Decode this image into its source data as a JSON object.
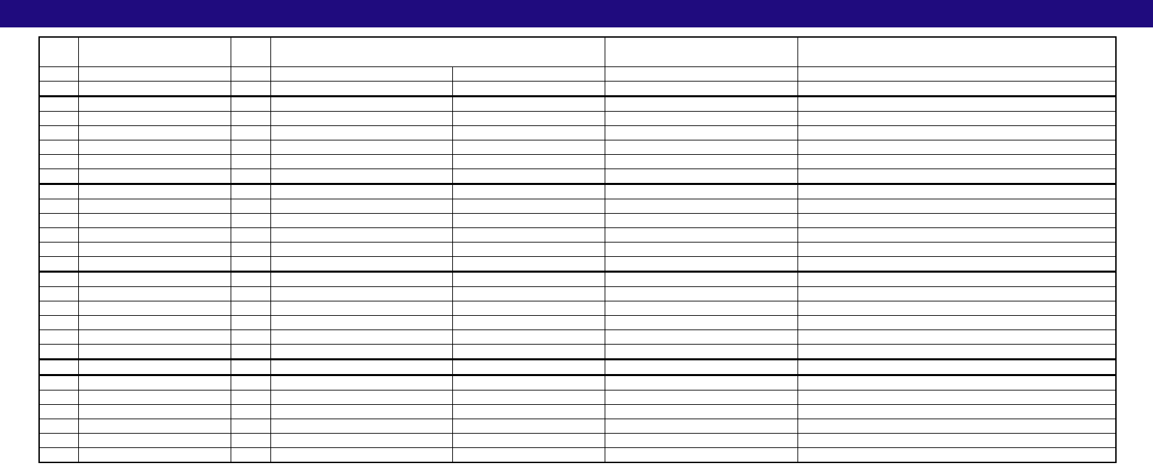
{
  "header_bar": {
    "color": "#1f0b7e"
  },
  "table": {
    "header": [
      "",
      "",
      "",
      "",
      "",
      ""
    ],
    "rows": [
      [
        "",
        "",
        "",
        "",
        "",
        "",
        ""
      ],
      [
        "",
        "",
        "",
        "",
        "",
        "",
        ""
      ],
      [
        "",
        "",
        "",
        "",
        "",
        "",
        ""
      ],
      [
        "",
        "",
        "",
        "",
        "",
        "",
        ""
      ],
      [
        "",
        "",
        "",
        "",
        "",
        "",
        ""
      ],
      [
        "",
        "",
        "",
        "",
        "",
        "",
        ""
      ],
      [
        "",
        "",
        "",
        "",
        "",
        "",
        ""
      ],
      [
        "",
        "",
        "",
        "",
        "",
        "",
        ""
      ],
      [
        "",
        "",
        "",
        "",
        "",
        "",
        ""
      ],
      [
        "",
        "",
        "",
        "",
        "",
        "",
        ""
      ],
      [
        "",
        "",
        "",
        "",
        "",
        "",
        ""
      ],
      [
        "",
        "",
        "",
        "",
        "",
        "",
        ""
      ],
      [
        "",
        "",
        "",
        "",
        "",
        "",
        ""
      ],
      [
        "",
        "",
        "",
        "",
        "",
        "",
        ""
      ],
      [
        "",
        "",
        "",
        "",
        "",
        "",
        ""
      ],
      [
        "",
        "",
        "",
        "",
        "",
        "",
        ""
      ],
      [
        "",
        "",
        "",
        "",
        "",
        "",
        ""
      ],
      [
        "",
        "",
        "",
        "",
        "",
        "",
        ""
      ],
      [
        "",
        "",
        "",
        "",
        "",
        "",
        ""
      ],
      [
        "",
        "",
        "",
        "",
        "",
        "",
        ""
      ],
      [
        "",
        "",
        "",
        "",
        "",
        "",
        ""
      ],
      [
        "",
        "",
        "",
        "",
        "",
        "",
        ""
      ],
      [
        "",
        "",
        "",
        "",
        "",
        "",
        ""
      ],
      [
        "",
        "",
        "",
        "",
        "",
        "",
        ""
      ],
      [
        "",
        "",
        "",
        "",
        "",
        "",
        ""
      ],
      [
        "",
        "",
        "",
        "",
        "",
        "",
        ""
      ],
      [
        "",
        "",
        "",
        "",
        "",
        "",
        ""
      ]
    ]
  }
}
